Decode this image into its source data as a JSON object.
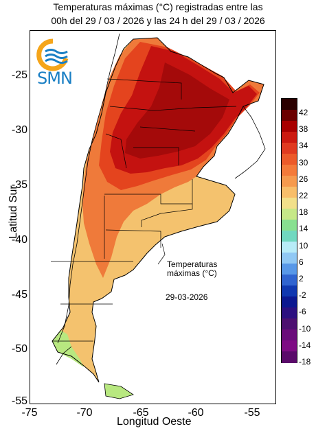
{
  "title": {
    "line1": "Temperaturas máximas (°C) registradas entre las",
    "line2": "00h del 29 / 03 / 2026 y las 24 h del 29 / 03 / 2026"
  },
  "logo": {
    "text": "SMN",
    "icon": "smn-sun-waves-logo"
  },
  "annotation": {
    "line1": "Temperaturas",
    "line2": "máximas (°C)",
    "date": "29-03-2026"
  },
  "axes": {
    "xlabel": "Longitud Oeste",
    "ylabel": "Latitud Sur",
    "xticks": [
      "-75",
      "-70",
      "-65",
      "-60",
      "-55"
    ],
    "yticks": [
      "-25",
      "-30",
      "-35",
      "-40",
      "-45",
      "-50",
      "-55"
    ]
  },
  "legend": {
    "labels": [
      "42",
      "38",
      "34",
      "30",
      "26",
      "22",
      "18",
      "14",
      "10",
      "6",
      "2",
      "-2",
      "-6",
      "-10",
      "-14",
      "-18"
    ],
    "colors": [
      "#2a0000",
      "#6b0000",
      "#a80000",
      "#cc1a10",
      "#e03a20",
      "#ec5a2a",
      "#f47a3a",
      "#f69a4e",
      "#f8be6a",
      "#f2e08a",
      "#c6e888",
      "#88e090",
      "#70d8c0",
      "#b8ecf8",
      "#90c8f4",
      "#5898e8",
      "#3064d0",
      "#1038b0",
      "#0c1890",
      "#2c1080",
      "#4c1070",
      "#6a0c7a",
      "#7e0c84",
      "#5a0a6a"
    ]
  },
  "colors": {
    "land_hot": "#b80a0a",
    "land_warm": "#f06a30",
    "land_mild": "#f4c26e",
    "land_cool": "#b8e880",
    "logo_blue": "#1a7fc4",
    "logo_orange": "#f5a51a"
  }
}
